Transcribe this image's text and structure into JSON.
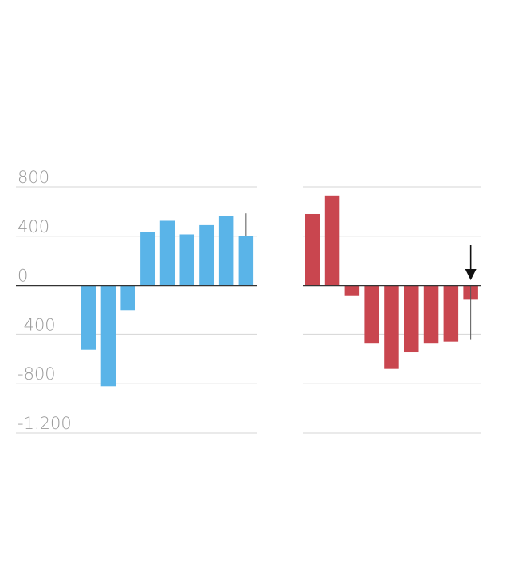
{
  "chart_data": [
    {
      "type": "bar",
      "title": "",
      "xlabel": "",
      "ylabel": "",
      "ylim": [
        -1200,
        800
      ],
      "yticks": [
        800,
        400,
        0,
        -400,
        -800,
        -1200
      ],
      "ytick_labels": [
        "800",
        "400",
        "0",
        "-400",
        "-800",
        "-1.200"
      ],
      "values": [
        null,
        null,
        null,
        -525,
        -820,
        -205,
        435,
        525,
        415,
        490,
        565,
        405
      ],
      "color": "#5ab4e8",
      "grid": true,
      "error_bar": {
        "index": 11,
        "low": 405,
        "high": 585
      }
    },
    {
      "type": "bar",
      "title": "",
      "xlabel": "",
      "ylabel": "",
      "ylim": [
        -1200,
        800
      ],
      "yticks": [
        800,
        400,
        0,
        -400,
        -800,
        -1200
      ],
      "values": [
        580,
        730,
        -85,
        -470,
        -680,
        -540,
        -470,
        -460,
        -115
      ],
      "color": "#c9464f",
      "grid": true,
      "error_bar": {
        "index": 8,
        "low": -440,
        "high": 0
      },
      "annotation": "down-arrow-icon"
    }
  ]
}
